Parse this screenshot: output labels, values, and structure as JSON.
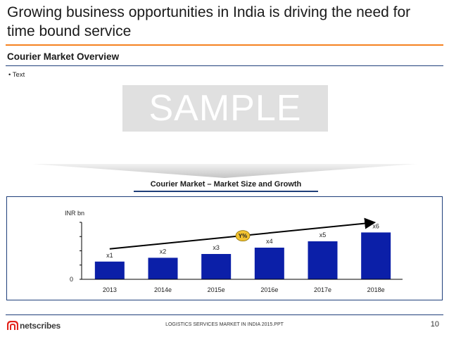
{
  "slide": {
    "title": "Growing business opportunities in India is driving the need for time bound service",
    "section_heading": "Courier Market Overview",
    "bullet": "• Text",
    "watermark": "SAMPLE"
  },
  "chart_data": {
    "type": "bar",
    "title": "Courier Market – Market Size and Growth",
    "ylabel": "INR bn",
    "xlabel": "",
    "categories": [
      "2013",
      "2014e",
      "2015e",
      "2016e",
      "2017e",
      "2018e"
    ],
    "values": [
      14,
      17,
      20,
      25,
      30,
      37
    ],
    "data_labels": [
      "x1",
      "x2",
      "x3",
      "x4",
      "x5",
      "x6"
    ],
    "ylim": [
      0,
      45
    ],
    "yticks": [
      "0"
    ],
    "growth_badge": "Y%",
    "colors": {
      "bar": "#0b1fa8",
      "badge": "#f2c230",
      "arrow": "#000000"
    }
  },
  "footer": {
    "brand": "netscribes",
    "doc_name": "LOGISTICS SERVICES MARKET IN INDIA 2015.PPT",
    "page_number": "10"
  },
  "colors": {
    "accent": "#f58220",
    "rule": "#1f3f7a"
  }
}
